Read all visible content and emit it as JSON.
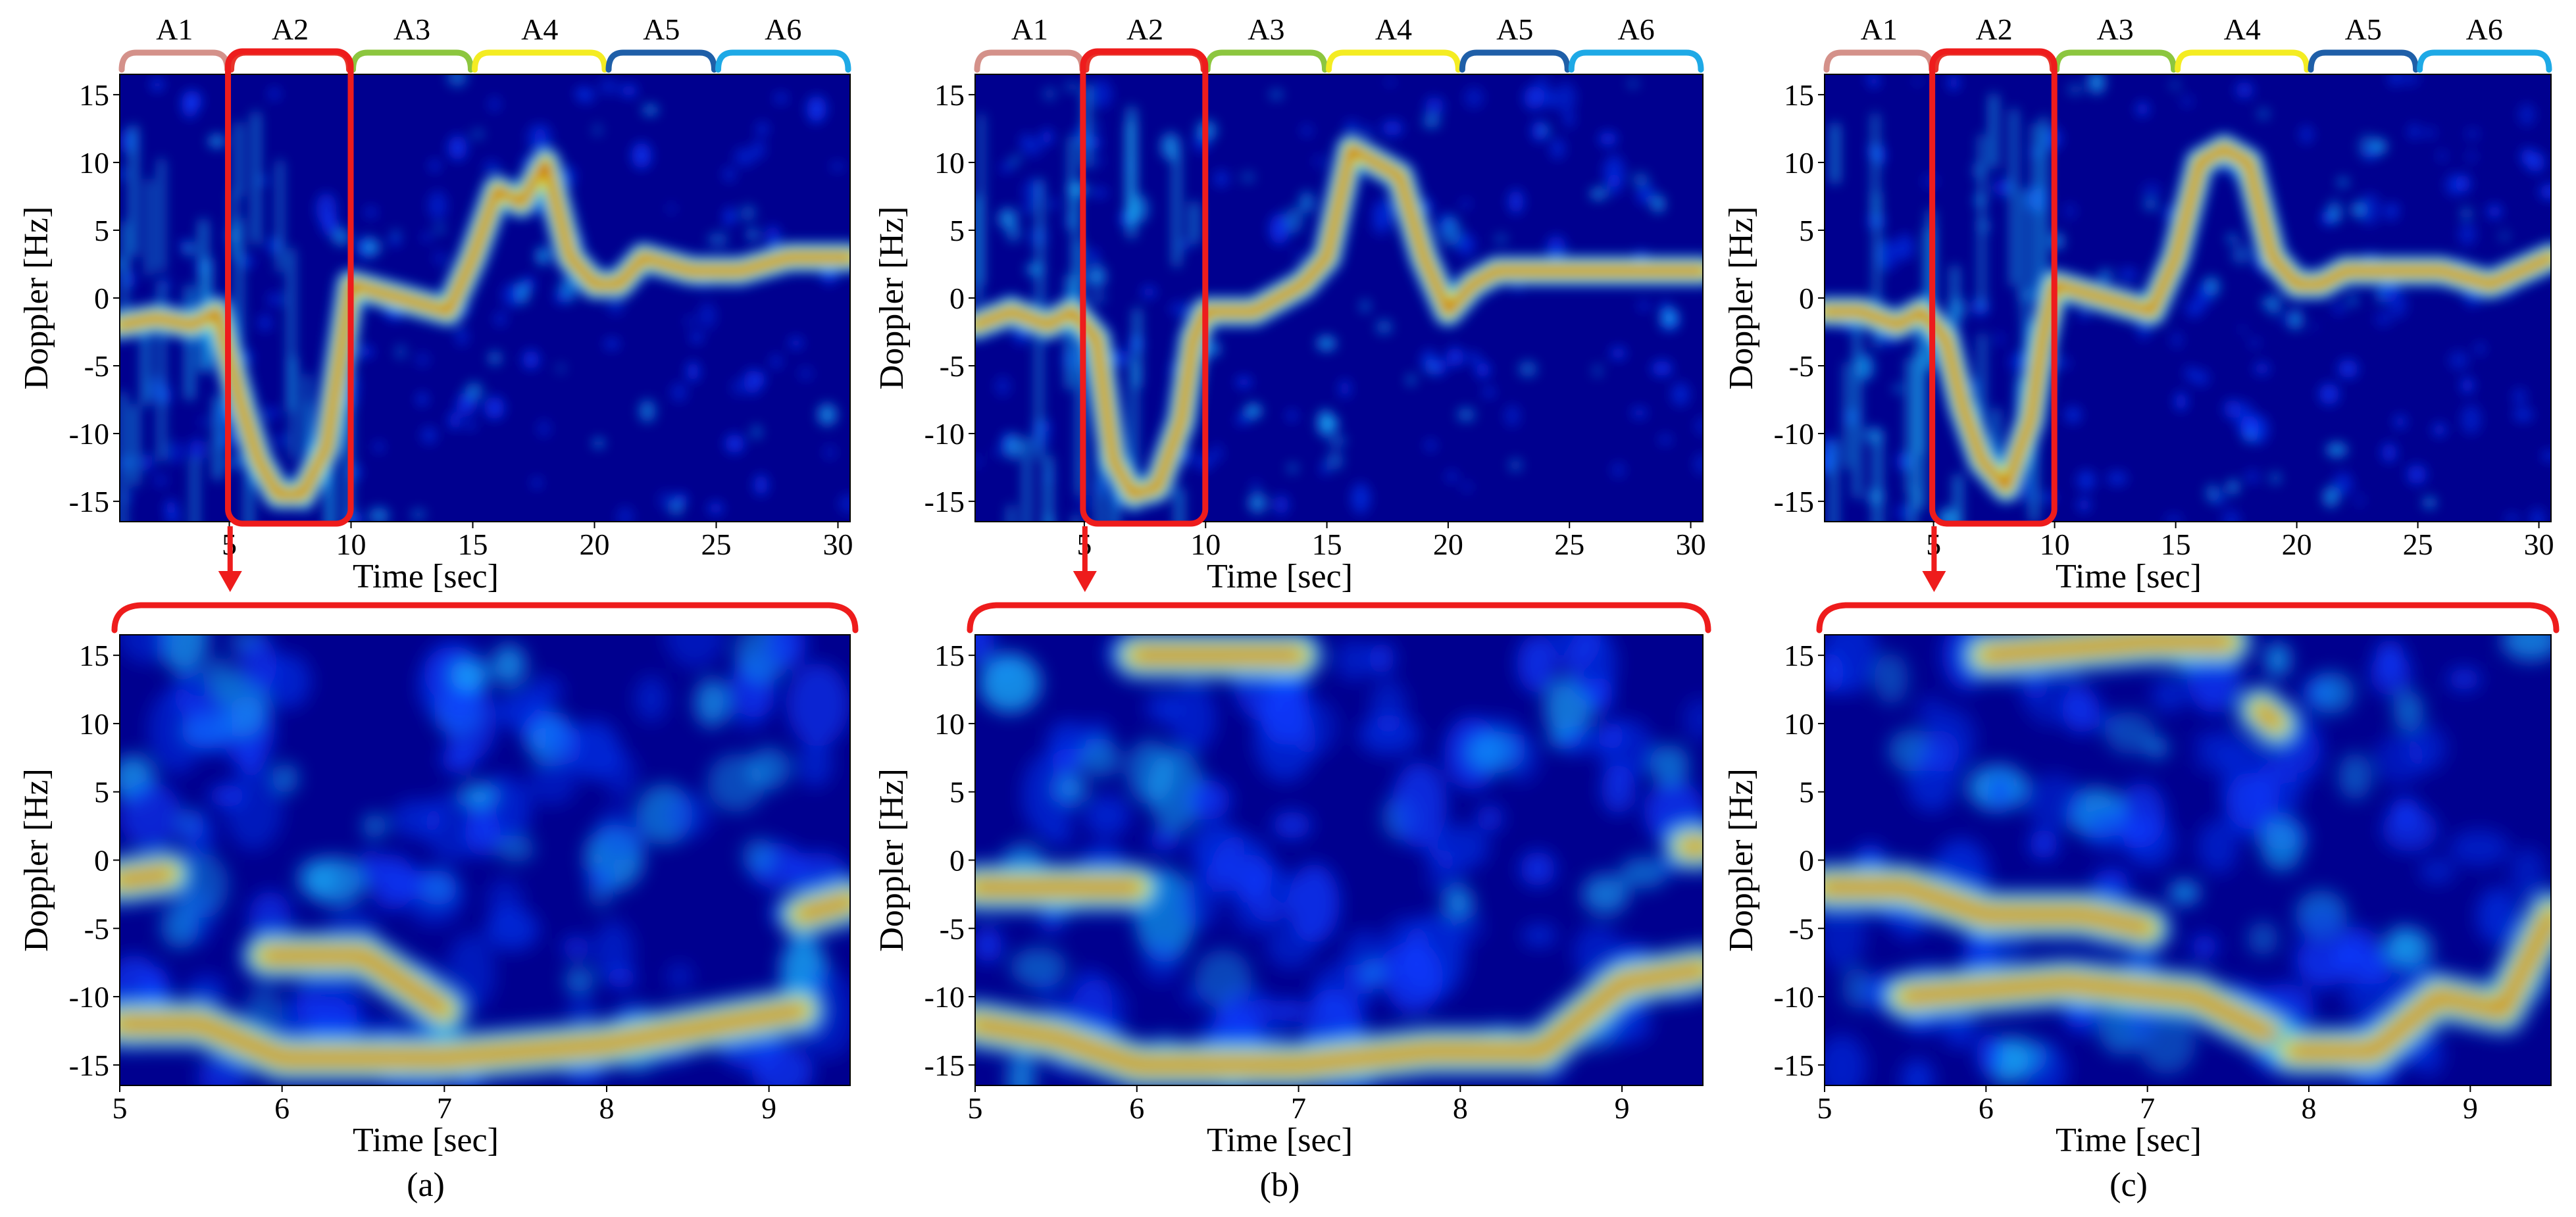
{
  "figure": {
    "panels": [
      {
        "id": "a",
        "caption": "(a)"
      },
      {
        "id": "b",
        "caption": "(b)"
      },
      {
        "id": "c",
        "caption": "(c)"
      }
    ],
    "segment_colors": [
      "#d4918a",
      "#e8342a",
      "#8cc63f",
      "#f4ec22",
      "#1f5fa8",
      "#1ea9e6"
    ],
    "highlight_color": "#ee1c1c"
  },
  "chart_data": [
    {
      "panel": "a",
      "row": "top",
      "type": "heatmap",
      "title": "",
      "xlabel": "Time [sec]",
      "ylabel": "Doppler [Hz]",
      "xlim": [
        0.5,
        30.5
      ],
      "ylim": [
        -16.5,
        16.5
      ],
      "xticks": [
        5,
        10,
        15,
        20,
        25,
        30
      ],
      "yticks": [
        15,
        10,
        5,
        0,
        -5,
        -10,
        -15
      ],
      "colormap": "jet",
      "segments": [
        {
          "label": "A1",
          "range": [
            0.5,
            5
          ]
        },
        {
          "label": "A2",
          "range": [
            5,
            10
          ]
        },
        {
          "label": "A3",
          "range": [
            10,
            15
          ]
        },
        {
          "label": "A4",
          "range": [
            15,
            20.5
          ]
        },
        {
          "label": "A5",
          "range": [
            20.5,
            25
          ]
        },
        {
          "label": "A6",
          "range": [
            25,
            30.5
          ]
        }
      ],
      "highlight_range": [
        5,
        9.5
      ],
      "ridge": [
        [
          0.5,
          -2
        ],
        [
          2,
          -1.5
        ],
        [
          3.5,
          -2
        ],
        [
          4.5,
          -1
        ],
        [
          5.5,
          -8
        ],
        [
          6.2,
          -12
        ],
        [
          7,
          -14.5
        ],
        [
          8,
          -14.5
        ],
        [
          9,
          -11
        ],
        [
          9.5,
          -5
        ],
        [
          10,
          1
        ],
        [
          12,
          0
        ],
        [
          14,
          -1
        ],
        [
          15,
          3
        ],
        [
          16,
          8
        ],
        [
          17,
          7
        ],
        [
          18,
          10
        ],
        [
          19,
          3
        ],
        [
          20,
          1
        ],
        [
          21,
          1
        ],
        [
          22,
          3
        ],
        [
          24,
          2
        ],
        [
          26,
          2
        ],
        [
          28,
          3
        ],
        [
          30.5,
          3
        ]
      ]
    },
    {
      "panel": "b",
      "row": "top",
      "type": "heatmap",
      "title": "",
      "xlabel": "Time [sec]",
      "ylabel": "Doppler [Hz]",
      "xlim": [
        0.5,
        30.5
      ],
      "ylim": [
        -16.5,
        16.5
      ],
      "xticks": [
        5,
        10,
        15,
        20,
        25,
        30
      ],
      "yticks": [
        15,
        10,
        5,
        0,
        -5,
        -10,
        -15
      ],
      "colormap": "jet",
      "segments": [
        {
          "label": "A1",
          "range": [
            0.5,
            5
          ]
        },
        {
          "label": "A2",
          "range": [
            5,
            10
          ]
        },
        {
          "label": "A3",
          "range": [
            10,
            15
          ]
        },
        {
          "label": "A4",
          "range": [
            15,
            20.5
          ]
        },
        {
          "label": "A5",
          "range": [
            20.5,
            25
          ]
        },
        {
          "label": "A6",
          "range": [
            25,
            30.5
          ]
        }
      ],
      "highlight_range": [
        5,
        9.5
      ],
      "ridge": [
        [
          0.5,
          -2
        ],
        [
          2,
          -1
        ],
        [
          3.5,
          -2
        ],
        [
          4.5,
          -1
        ],
        [
          5.5,
          -3
        ],
        [
          6.2,
          -12
        ],
        [
          7,
          -14.5
        ],
        [
          8,
          -14
        ],
        [
          9,
          -9
        ],
        [
          9.5,
          -3
        ],
        [
          10,
          -1
        ],
        [
          12,
          -1
        ],
        [
          14,
          1
        ],
        [
          15,
          3
        ],
        [
          16,
          11
        ],
        [
          17,
          10
        ],
        [
          18,
          9
        ],
        [
          19,
          3
        ],
        [
          20,
          -1
        ],
        [
          21,
          1
        ],
        [
          22,
          2
        ],
        [
          24,
          2
        ],
        [
          26,
          2
        ],
        [
          28,
          2
        ],
        [
          30.5,
          2
        ]
      ]
    },
    {
      "panel": "c",
      "row": "top",
      "type": "heatmap",
      "title": "",
      "xlabel": "Time [sec]",
      "ylabel": "Doppler [Hz]",
      "xlim": [
        0.5,
        30.5
      ],
      "ylim": [
        -16.5,
        16.5
      ],
      "xticks": [
        5,
        10,
        15,
        20,
        25,
        30
      ],
      "yticks": [
        15,
        10,
        5,
        0,
        -5,
        -10,
        -15
      ],
      "colormap": "jet",
      "segments": [
        {
          "label": "A1",
          "range": [
            0.5,
            5
          ]
        },
        {
          "label": "A2",
          "range": [
            5,
            10
          ]
        },
        {
          "label": "A3",
          "range": [
            10,
            15
          ]
        },
        {
          "label": "A4",
          "range": [
            15,
            20.5
          ]
        },
        {
          "label": "A5",
          "range": [
            20.5,
            25
          ]
        },
        {
          "label": "A6",
          "range": [
            25,
            30.5
          ]
        }
      ],
      "highlight_range": [
        5,
        9.5
      ],
      "ridge": [
        [
          0.5,
          -1
        ],
        [
          2,
          -1
        ],
        [
          3.5,
          -2
        ],
        [
          4.5,
          -1
        ],
        [
          5.5,
          -3
        ],
        [
          6.2,
          -8
        ],
        [
          7,
          -12
        ],
        [
          8,
          -14
        ],
        [
          9,
          -9
        ],
        [
          9.5,
          -3
        ],
        [
          10,
          1
        ],
        [
          12,
          0
        ],
        [
          14,
          -1
        ],
        [
          15,
          3
        ],
        [
          16,
          10
        ],
        [
          17,
          11
        ],
        [
          18,
          10
        ],
        [
          19,
          3
        ],
        [
          20,
          1
        ],
        [
          21,
          1
        ],
        [
          22,
          2
        ],
        [
          24,
          2
        ],
        [
          26,
          2
        ],
        [
          28,
          1
        ],
        [
          30.5,
          3
        ]
      ]
    },
    {
      "panel": "a",
      "row": "bottom",
      "type": "heatmap",
      "title": "",
      "xlabel": "Time [sec]",
      "ylabel": "Doppler [Hz]",
      "xlim": [
        5,
        9.5
      ],
      "ylim": [
        -16.5,
        16.5
      ],
      "xticks": [
        5,
        6,
        7,
        8,
        9
      ],
      "yticks": [
        15,
        10,
        5,
        0,
        -5,
        -10,
        -15
      ],
      "colormap": "jet",
      "ridges": [
        [
          [
            5,
            -12
          ],
          [
            5.5,
            -12
          ],
          [
            6,
            -14.5
          ],
          [
            7,
            -14.5
          ],
          [
            8,
            -13.5
          ],
          [
            8.7,
            -12
          ],
          [
            9.2,
            -11
          ]
        ],
        [
          [
            5.9,
            -7
          ],
          [
            6.5,
            -7
          ],
          [
            7,
            -11
          ]
        ],
        [
          [
            9.2,
            -4
          ],
          [
            9.5,
            -3
          ]
        ],
        [
          [
            5,
            -1.5
          ],
          [
            5.3,
            -1
          ]
        ]
      ]
    },
    {
      "panel": "b",
      "row": "bottom",
      "type": "heatmap",
      "title": "",
      "xlabel": "Time [sec]",
      "ylabel": "Doppler [Hz]",
      "xlim": [
        5,
        9.5
      ],
      "ylim": [
        -16.5,
        16.5
      ],
      "xticks": [
        5,
        6,
        7,
        8,
        9
      ],
      "yticks": [
        15,
        10,
        5,
        0,
        -5,
        -10,
        -15
      ],
      "colormap": "jet",
      "ridges": [
        [
          [
            5,
            -12
          ],
          [
            5.5,
            -13
          ],
          [
            6,
            -15
          ],
          [
            7,
            -15
          ],
          [
            7.8,
            -14
          ],
          [
            8.5,
            -14
          ],
          [
            9,
            -9
          ],
          [
            9.5,
            -8
          ]
        ],
        [
          [
            5,
            -2
          ],
          [
            5.5,
            -2
          ],
          [
            6,
            -2
          ]
        ],
        [
          [
            6,
            15
          ],
          [
            7,
            15
          ]
        ],
        [
          [
            9.4,
            1
          ],
          [
            9.5,
            1
          ]
        ]
      ]
    },
    {
      "panel": "c",
      "row": "bottom",
      "type": "heatmap",
      "title": "",
      "xlabel": "Time [sec]",
      "ylabel": "Doppler [Hz]",
      "xlim": [
        5,
        9.5
      ],
      "ylim": [
        -16.5,
        16.5
      ],
      "xticks": [
        5,
        6,
        7,
        8,
        9
      ],
      "yticks": [
        15,
        10,
        5,
        0,
        -5,
        -10,
        -15
      ],
      "colormap": "jet",
      "ridges": [
        [
          [
            5,
            -2
          ],
          [
            5.5,
            -2
          ],
          [
            6,
            -4
          ],
          [
            6.6,
            -4
          ],
          [
            7,
            -5
          ]
        ],
        [
          [
            5.5,
            -10
          ],
          [
            6.5,
            -9
          ],
          [
            7.3,
            -10
          ],
          [
            7.8,
            -13
          ]
        ],
        [
          [
            7.9,
            -14
          ],
          [
            8.4,
            -14
          ],
          [
            8.8,
            -10
          ],
          [
            9.2,
            -11
          ],
          [
            9.5,
            -4
          ]
        ],
        [
          [
            6,
            15
          ],
          [
            7,
            16
          ],
          [
            7.5,
            16
          ]
        ],
        [
          [
            7.7,
            11
          ],
          [
            7.8,
            10
          ]
        ]
      ]
    }
  ]
}
